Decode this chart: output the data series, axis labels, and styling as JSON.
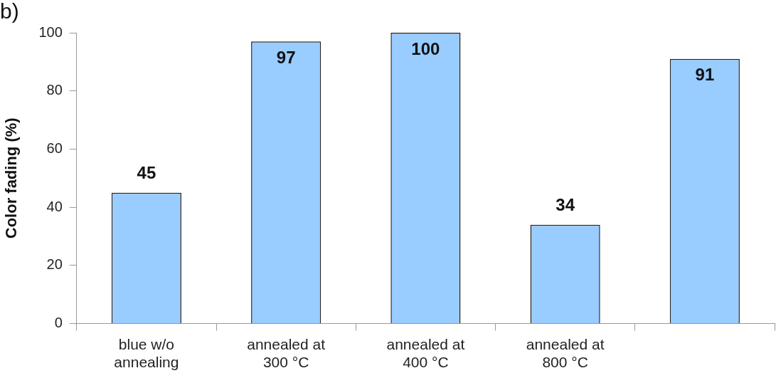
{
  "chart_data": {
    "type": "bar",
    "title": "b)",
    "ylabel": "Color fading (%)",
    "categories": [
      "blue w/o annealing",
      "annealed at 300 °C",
      "annealed at 400 °C",
      "annealed at 800 °C",
      null
    ],
    "values": [
      45,
      97,
      100,
      34,
      91
    ],
    "color": "#99ccff",
    "ylim": [
      0,
      100
    ],
    "yticks": [
      0,
      20,
      40,
      60,
      80,
      100
    ],
    "grid": false,
    "legend": false,
    "data_labels": true
  }
}
